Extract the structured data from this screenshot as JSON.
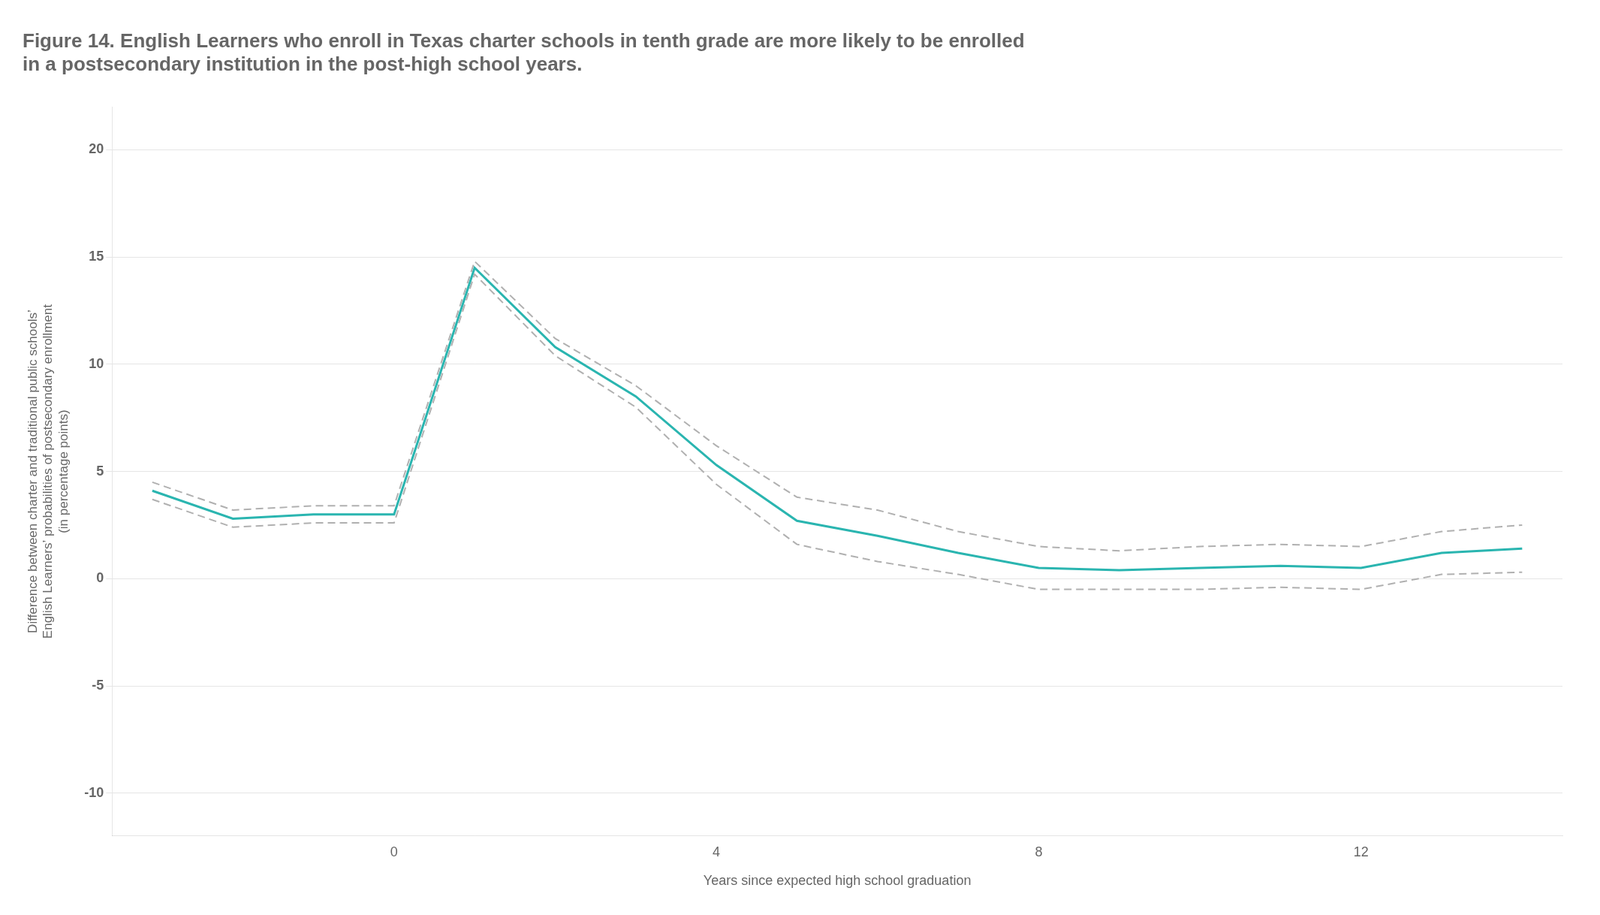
{
  "chart_data": {
    "type": "line",
    "title": [
      "Figure 14. English Learners who enroll in Texas charter schools in tenth grade are more likely to be enrolled",
      "in a postsecondary institution in the post-high school years."
    ],
    "xlabel": "Years since expected high school graduation",
    "ylabel": [
      "Difference between charter and traditional public schools’",
      "English Learners’ probabilities of postsecondary enrollment",
      "(in percentage points)"
    ],
    "x": [
      -3,
      -2,
      -1,
      0,
      1,
      2,
      3,
      4,
      5,
      6,
      7,
      8,
      9,
      10,
      11,
      12,
      13,
      14
    ],
    "series": [
      {
        "color": "#b0b0b0",
        "line_style": "dashed",
        "values": [
          4.5,
          3.2,
          3.4,
          3.4,
          14.8,
          11.2,
          9.0,
          6.2,
          3.8,
          3.2,
          2.2,
          1.5,
          1.3,
          1.5,
          1.6,
          1.5,
          2.2,
          2.5
        ]
      },
      {
        "color": "#b0b0b0",
        "line_style": "dashed",
        "values": [
          3.7,
          2.4,
          2.6,
          2.6,
          14.2,
          10.4,
          8.0,
          4.4,
          1.6,
          0.8,
          0.2,
          -0.5,
          -0.5,
          -0.5,
          -0.4,
          -0.5,
          0.2,
          0.3
        ]
      },
      {
        "color": "#2ab5b0",
        "line_style": "solid",
        "values": [
          4.1,
          2.8,
          3.0,
          3.0,
          14.5,
          10.8,
          8.5,
          5.3,
          2.7,
          2.0,
          1.2,
          0.5,
          0.4,
          0.5,
          0.6,
          0.5,
          1.2,
          1.4
        ]
      }
    ],
    "xlim": [
      -3.5,
      14.5
    ],
    "xticks": [
      0,
      4,
      8,
      12
    ],
    "ylim": [
      -12,
      22
    ],
    "yticks": [
      -10,
      -5,
      0,
      5,
      10,
      15,
      20
    ],
    "grid": "y"
  }
}
